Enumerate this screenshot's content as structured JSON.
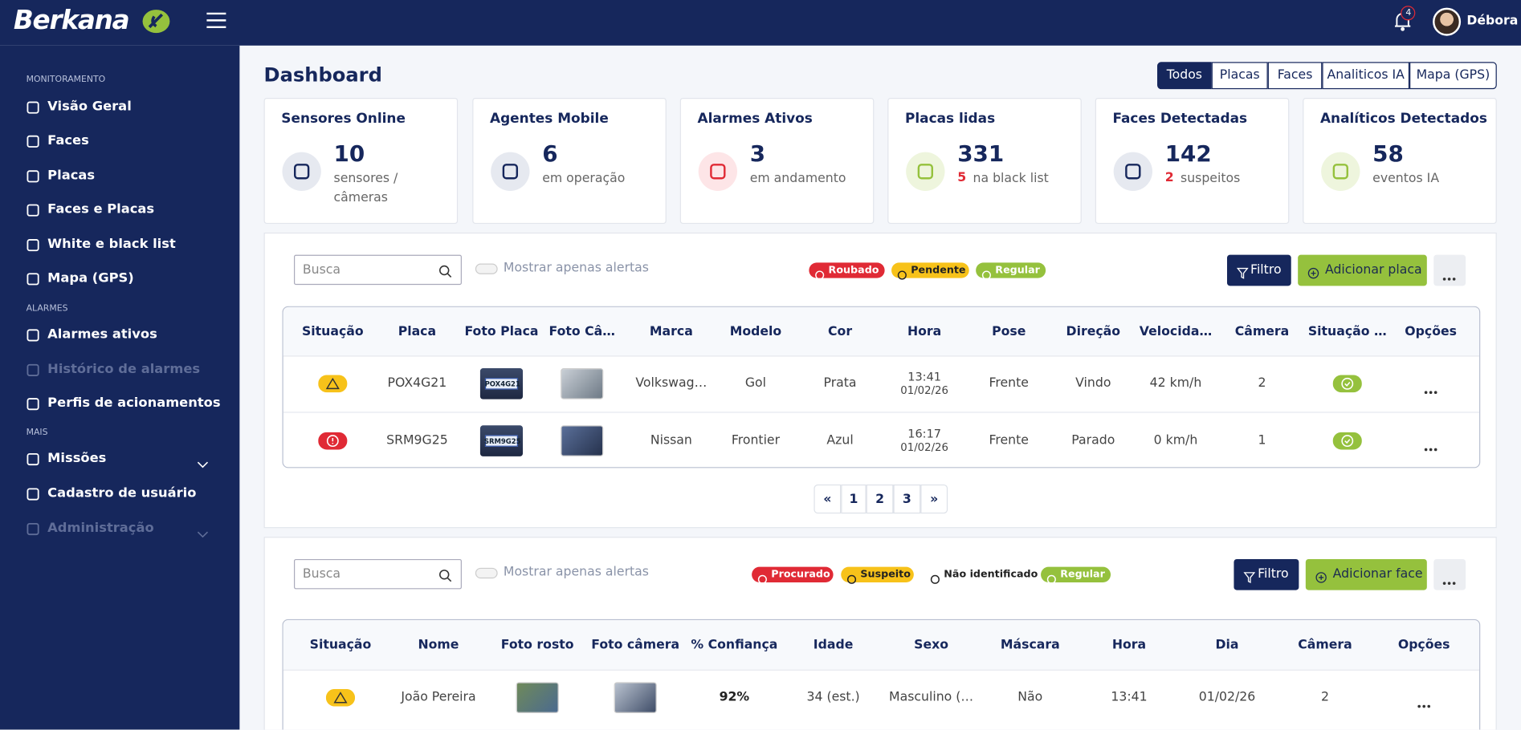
{
  "header": {
    "brand": "Berkana",
    "notifications": 4,
    "user": "Débora"
  },
  "sidebar": [
    {
      "title": "MONITORAMENTO",
      "items": [
        "Visão Geral",
        "Faces",
        "Placas",
        "Faces e Placas",
        "White e black list",
        "Mapa (GPS)"
      ]
    },
    {
      "title": "ALARMES",
      "items": [
        "Alarmes ativos",
        "Histórico de alarmes",
        "Perfis de acionamentos"
      ]
    },
    {
      "title": "MAIS",
      "items": [
        "Missões",
        "Cadastro de usuário",
        "Administração"
      ]
    }
  ],
  "page": {
    "title": "Dashboard",
    "tabs": [
      "Todos",
      "Placas",
      "Faces",
      "Analiticos IA",
      "Mapa (GPS)"
    ]
  },
  "cards": [
    {
      "title": "Sensores Online",
      "value": 10,
      "desc": "sensores / câmeras"
    },
    {
      "title": "Agentes Mobile",
      "value": 6,
      "desc": "em operação"
    },
    {
      "title": "Alarmes Ativos",
      "value": 3,
      "desc": "em andamento"
    },
    {
      "title": "Placas lidas",
      "value": 331,
      "highlight": 5,
      "desc": "na black list"
    },
    {
      "title": "Faces Detectadas",
      "value": 142,
      "highlight": 2,
      "desc": "suspeitos"
    },
    {
      "title": "Analíticos Detectados",
      "value": 58,
      "desc": "eventos IA"
    }
  ],
  "plates": {
    "search": "Busca",
    "toggle": "Mostrar apenas alertas",
    "legend": [
      "Roubado",
      "Pendente",
      "Regular"
    ],
    "filter": "Filtro",
    "add": "Adicionar placa",
    "columns": [
      "Situação",
      "Placa",
      "Foto Placa",
      "Foto Câ…",
      "Marca",
      "Modelo",
      "Cor",
      "Hora",
      "Pose",
      "Direção",
      "Velocida…",
      "Câmera",
      "Situação …",
      "Opções"
    ],
    "rows": [
      {
        "placa": "POX4G21",
        "plate_photo": "POX4G21",
        "marca": "Volkswag…",
        "modelo": "Gol",
        "cor": "Prata",
        "hora": "13:41",
        "data": "01/02/26",
        "pose": "Frente",
        "direcao": "Vindo",
        "velocidade": "42 km/h",
        "camera": "2"
      },
      {
        "placa": "SRM9G25",
        "plate_photo": "SRM9G25",
        "marca": "Nissan",
        "modelo": "Frontier",
        "cor": "Azul",
        "hora": "16:17",
        "data": "01/02/26",
        "pose": "Frente",
        "direcao": "Parado",
        "velocidade": "0 km/h",
        "camera": "1"
      }
    ],
    "pagination": [
      "«",
      "1",
      "2",
      "3",
      "»"
    ]
  },
  "faces": {
    "search": "Busca",
    "toggle": "Mostrar apenas alertas",
    "legend": [
      "Procurado",
      "Suspeito",
      "Não identificado",
      "Regular"
    ],
    "filter": "Filtro",
    "add": "Adicionar face",
    "columns": [
      "Situação",
      "Nome",
      "Foto rosto",
      "Foto câmera",
      "% Confiança",
      "Idade",
      "Sexo",
      "Máscara",
      "Hora",
      "Dia",
      "Câmera",
      "Opções"
    ],
    "rows": [
      {
        "nome": "João Pereira",
        "confianca": "92%",
        "idade": "34 (est.)",
        "sexo": "Masculino (…",
        "mascara": "Não",
        "hora": "13:41",
        "dia": "01/02/26",
        "camera": "2"
      }
    ]
  }
}
